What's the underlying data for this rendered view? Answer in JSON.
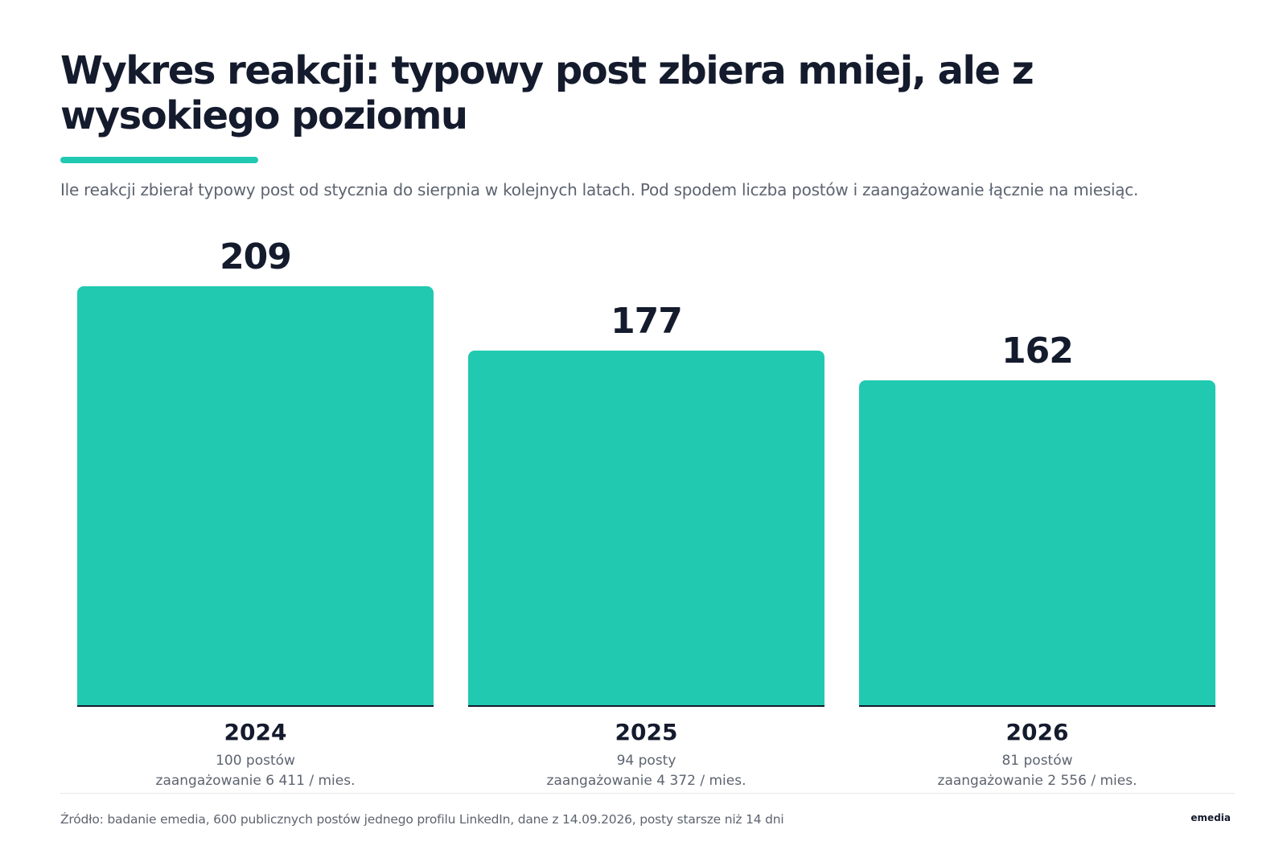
{
  "header": {
    "title": "Wykres reakcji: typowy post zbiera mniej, ale z wysokiego poziomu",
    "subtitle": "Ile reakcji zbierał typowy post od stycznia do sierpnia w kolejnych latach. Pod spodem liczba postów i zaangażowanie łącznie na miesiąc."
  },
  "chart_data": {
    "type": "bar",
    "title": "Wykres reakcji: typowy post zbiera mniej, ale z wysokiego poziomu",
    "categories": [
      "2024",
      "2025",
      "2026"
    ],
    "values": [
      209,
      177,
      162
    ],
    "value_labels": [
      "209",
      "177",
      "162"
    ],
    "posts_labels": [
      "100 postów",
      "94 posty",
      "81 postów"
    ],
    "engagement_labels": [
      "zaangażowanie 6 411 / mies.",
      "zaangażowanie 4 372 / mies.",
      "zaangażowanie 2 556 / mies."
    ],
    "xlabel": "",
    "ylabel": "",
    "ylim": [
      0,
      209
    ],
    "grid": false,
    "legend": "none",
    "bar_color": "#21c9b0"
  },
  "footer": {
    "source": "Źródło: badanie emedia, 600 publicznych postów jednego profilu LinkedIn, dane z 14.09.2026, posty starsze niż 14 dni",
    "logo": "emedia"
  },
  "colors": {
    "accent": "#21c9b0",
    "text": "#141b2d",
    "muted": "#5d6470"
  }
}
